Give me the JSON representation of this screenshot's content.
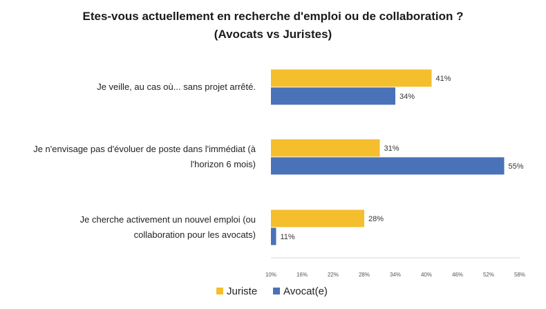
{
  "chart_data": {
    "type": "bar",
    "orientation": "horizontal",
    "title": "Etes-vous actuellement en recherche d'emploi ou de collaboration ?",
    "subtitle": "(Avocats vs Juristes)",
    "categories": [
      [
        "Je veille, au cas où... sans projet arrêté."
      ],
      [
        "Je n'envisage pas d'évoluer de poste dans l'immédiat (à",
        "l'horizon 6 mois)"
      ],
      [
        "Je cherche activement un nouvel emploi (ou",
        "collaboration pour les avocats)"
      ]
    ],
    "series": [
      {
        "name": "Juriste",
        "color": "#F4BE2C",
        "values": [
          41,
          31,
          28
        ],
        "labels": [
          "41%",
          "31%",
          "28%"
        ]
      },
      {
        "name": "Avocat(e)",
        "color": "#4A72B8",
        "values": [
          34,
          55,
          11
        ],
        "labels": [
          "34%",
          "55%",
          "11%"
        ]
      }
    ],
    "xlim": [
      10,
      58
    ],
    "x_ticks": [
      10,
      16,
      22,
      28,
      34,
      40,
      46,
      52,
      58
    ],
    "x_tick_labels": [
      "10%",
      "16%",
      "22%",
      "28%",
      "34%",
      "40%",
      "46%",
      "52%",
      "58%"
    ],
    "grid": false,
    "legend_position": "bottom"
  }
}
